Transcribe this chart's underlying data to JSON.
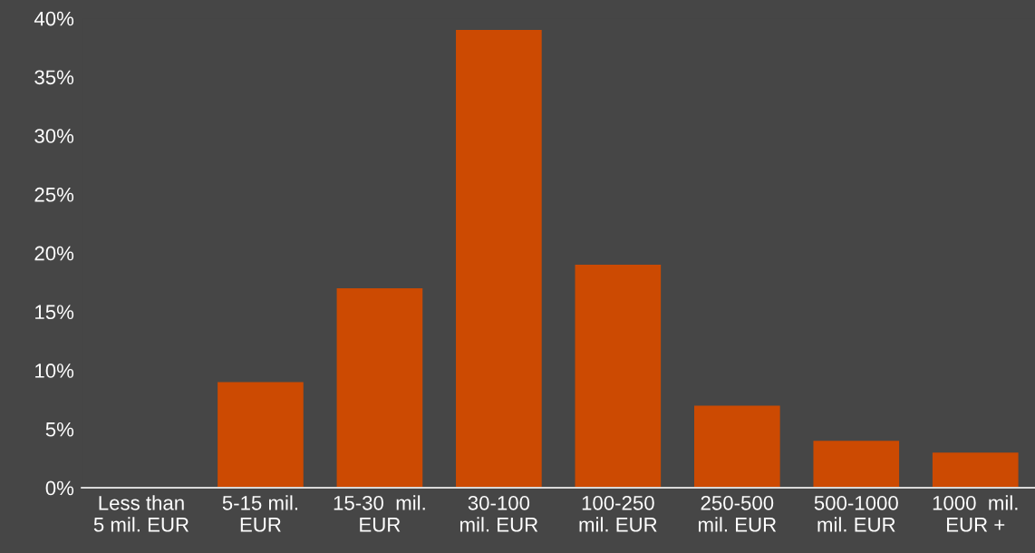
{
  "chart_data": {
    "type": "bar",
    "categories": [
      "Less than\n5 mil. EUR",
      "5-15 mil.\nEUR",
      "15-30  mil.\nEUR",
      "30-100\nmil. EUR",
      "100-250\nmil. EUR",
      "250-500\nmil. EUR",
      "500-1000\nmil. EUR",
      "1000  mil.\nEUR +"
    ],
    "values": [
      0,
      9,
      17,
      39,
      19,
      7,
      4,
      3
    ],
    "color": "#cc4a02",
    "ylim": [
      0,
      40
    ],
    "yticks": [
      {
        "value": 0,
        "label": "0%"
      },
      {
        "value": 5,
        "label": "5%"
      },
      {
        "value": 10,
        "label": "10%"
      },
      {
        "value": 15,
        "label": "15%"
      },
      {
        "value": 20,
        "label": "20%"
      },
      {
        "value": 25,
        "label": "25%"
      },
      {
        "value": 30,
        "label": "30%"
      },
      {
        "value": 35,
        "label": "35%"
      },
      {
        "value": 40,
        "label": "40%"
      }
    ],
    "grid": false,
    "legend": false
  }
}
